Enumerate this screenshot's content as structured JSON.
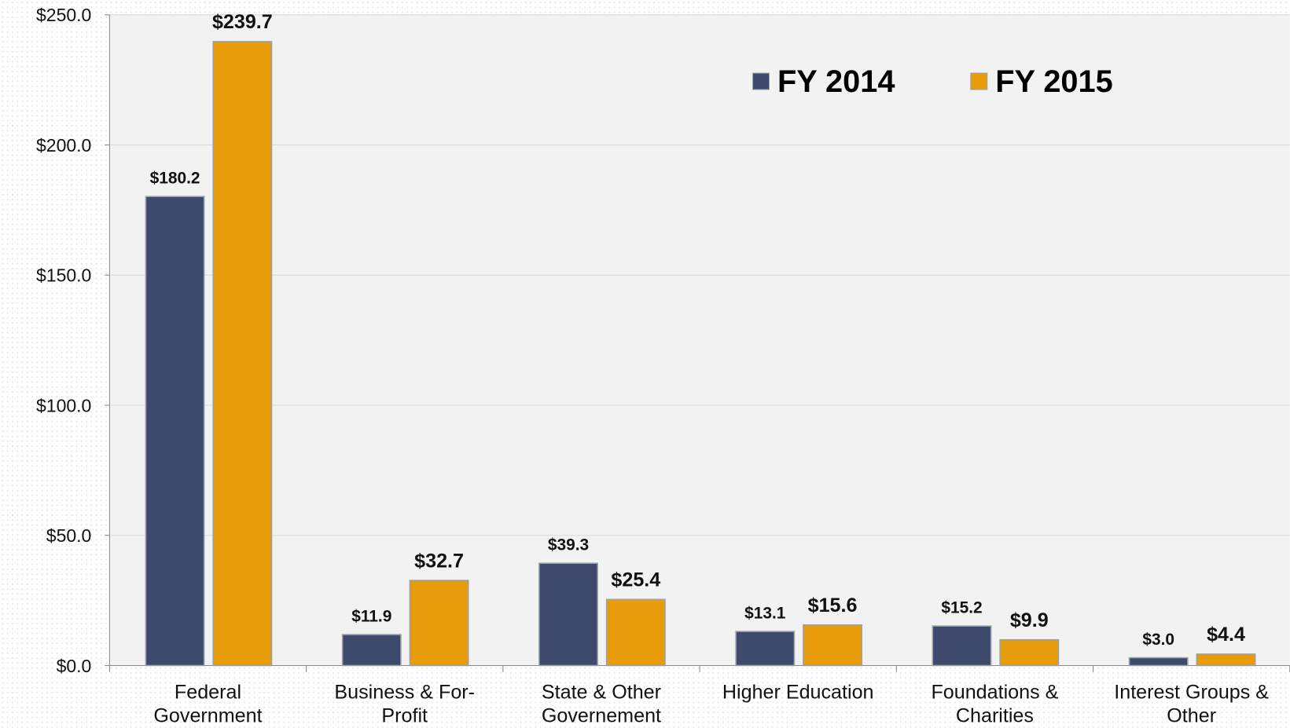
{
  "chart_data": {
    "type": "bar",
    "categories": [
      "Federal\nGovernment",
      "Business & For-\nProfit",
      "State & Other\nGovernement",
      "Higher Education",
      "Foundations &\nCharities",
      "Interest Groups &\nOther"
    ],
    "series": [
      {
        "name": "FY 2014",
        "color": "#3d4a6b",
        "values": [
          180.2,
          11.9,
          39.3,
          13.1,
          15.2,
          3.0
        ],
        "value_labels": [
          "$180.2",
          "$11.9",
          "$39.3",
          "$13.1",
          "$15.2",
          "$3.0"
        ]
      },
      {
        "name": "FY 2015",
        "color": "#e89c0a",
        "values": [
          239.7,
          32.7,
          25.4,
          15.6,
          9.9,
          4.4
        ],
        "value_labels": [
          "$239.7",
          "$32.7",
          "$25.4",
          "$15.6",
          "$9.9",
          "$4.4"
        ]
      }
    ],
    "ylim": [
      0,
      250
    ],
    "yticks": [
      {
        "value": 0,
        "label": "$0.0"
      },
      {
        "value": 50,
        "label": "$50.0"
      },
      {
        "value": 100,
        "label": "$100.0"
      },
      {
        "value": 150,
        "label": "$150.0"
      },
      {
        "value": 200,
        "label": "$200.0"
      },
      {
        "value": 250,
        "label": "$250.0"
      }
    ],
    "grid": true,
    "legend": "top-right"
  }
}
